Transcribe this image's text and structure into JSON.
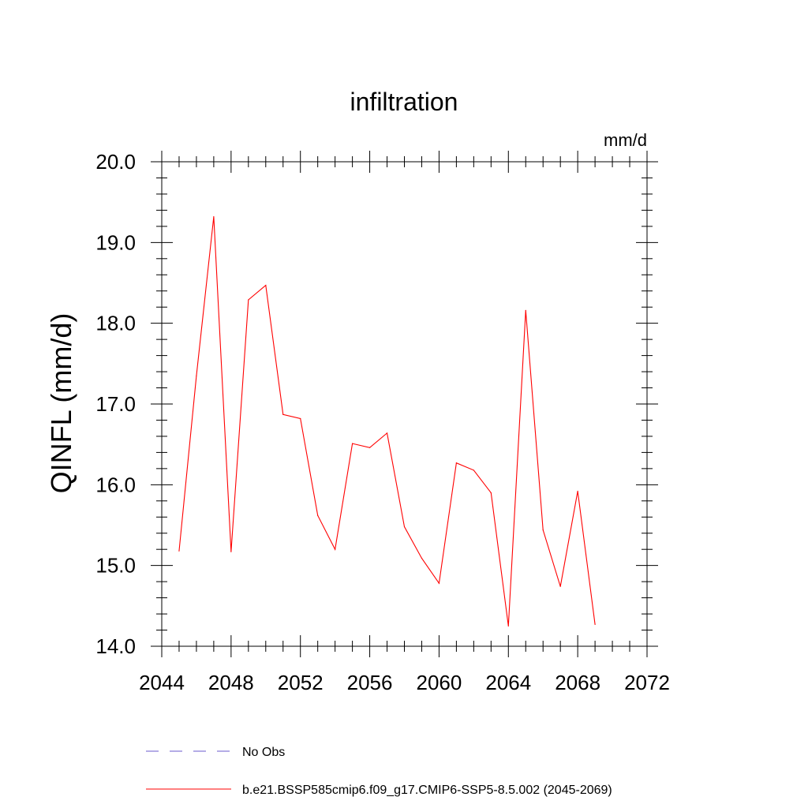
{
  "chart_data": {
    "type": "line",
    "title": "infiltration",
    "units_label": "mm/d",
    "ylabel": "QINFL  (mm/d)",
    "xlabel": "",
    "xlim": [
      2044,
      2072
    ],
    "ylim": [
      14.0,
      20.0
    ],
    "x_ticks": [
      2044,
      2048,
      2052,
      2056,
      2060,
      2064,
      2068,
      2072
    ],
    "y_ticks": [
      "14.0",
      "15.0",
      "16.0",
      "17.0",
      "18.0",
      "19.0",
      "20.0"
    ],
    "grid": false,
    "legend_position": "bottom",
    "series": [
      {
        "name": "b.e21.BSSP585cmip6.f09_g17.CMIP6-SSP5-8.5.002 (2045-2069)",
        "color": "#ff0000",
        "dash": "solid",
        "x": [
          2045,
          2046,
          2047,
          2048,
          2049,
          2050,
          2051,
          2052,
          2053,
          2054,
          2055,
          2056,
          2057,
          2058,
          2059,
          2060,
          2061,
          2062,
          2063,
          2064,
          2065,
          2066,
          2067,
          2068,
          2069
        ],
        "y": [
          15.18,
          17.35,
          19.32,
          15.17,
          18.29,
          18.47,
          16.87,
          16.82,
          15.62,
          15.2,
          16.51,
          16.46,
          16.64,
          15.48,
          15.09,
          14.78,
          16.27,
          16.18,
          15.9,
          14.25,
          18.16,
          15.44,
          14.74,
          15.92,
          14.27
        ]
      }
    ],
    "legend": [
      {
        "label": "No Obs",
        "color": "#6a5acd",
        "dash": "dashed"
      },
      {
        "label": "b.e21.BSSP585cmip6.f09_g17.CMIP6-SSP5-8.5.002 (2045-2069)",
        "color": "#ff0000",
        "dash": "solid"
      }
    ]
  }
}
